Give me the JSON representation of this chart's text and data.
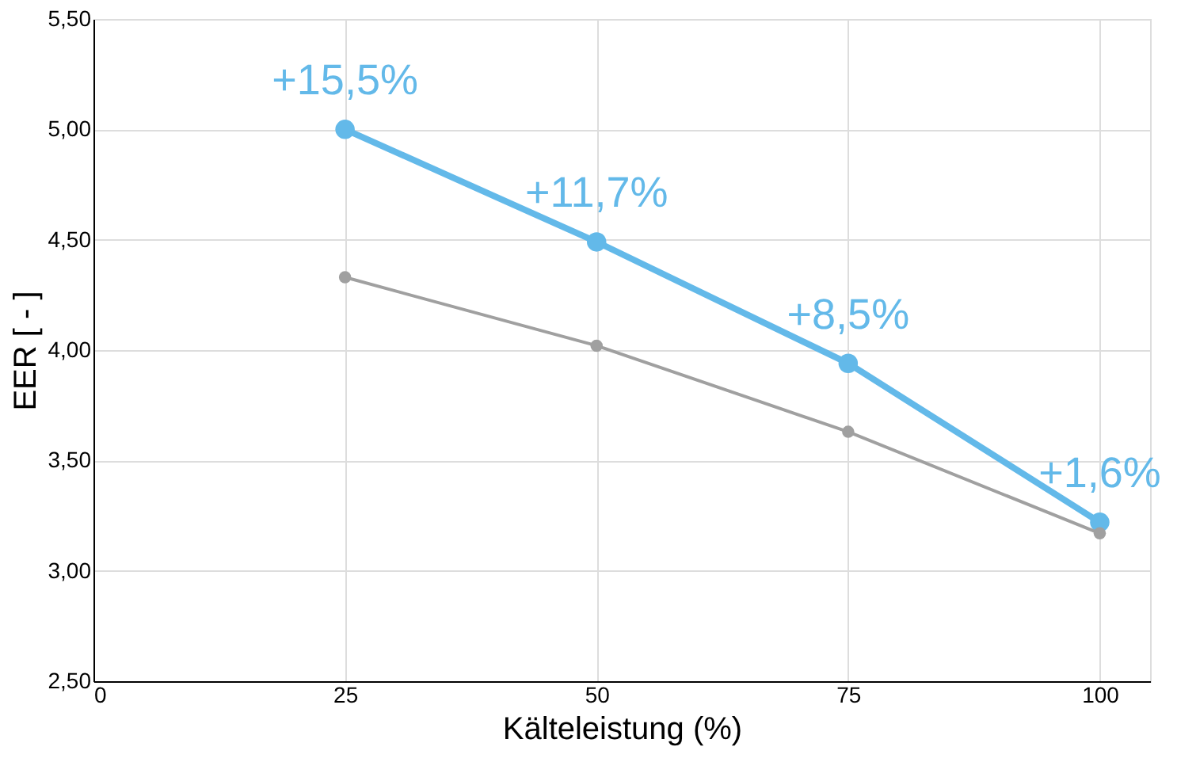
{
  "chart_data": {
    "type": "line",
    "xlabel": "Kälteleistung (%)",
    "ylabel": "EER  [ - ]",
    "x": [
      25,
      50,
      75,
      100
    ],
    "series": [
      {
        "color": "#63b9e9",
        "values": [
          5.0,
          4.49,
          3.94,
          3.22
        ]
      },
      {
        "color": "#a0a0a0",
        "values": [
          4.33,
          4.02,
          3.63,
          3.17
        ]
      }
    ],
    "xlim": [
      0,
      105
    ],
    "xticks": [
      0,
      25,
      50,
      75,
      100
    ],
    "ylim": [
      2.5,
      5.5
    ],
    "yticks": [
      {
        "value": 2.5,
        "label": "2,50"
      },
      {
        "value": 3.0,
        "label": "3,00"
      },
      {
        "value": 3.5,
        "label": "3,50"
      },
      {
        "value": 4.0,
        "label": "4,00"
      },
      {
        "value": 4.5,
        "label": "4,50"
      },
      {
        "value": 5.0,
        "label": "5,00"
      },
      {
        "value": 5.5,
        "label": "5,50"
      }
    ],
    "grid": true,
    "marker": "circle",
    "line_style": "solid",
    "annotations": [
      {
        "text": "+15,5%",
        "x": 25,
        "y": 5.0
      },
      {
        "text": "+11,7%",
        "x": 50,
        "y": 4.49
      },
      {
        "text": "+8,5%",
        "x": 75,
        "y": 3.94
      },
      {
        "text": "+1,6%",
        "x": 100,
        "y": 3.22
      }
    ]
  }
}
